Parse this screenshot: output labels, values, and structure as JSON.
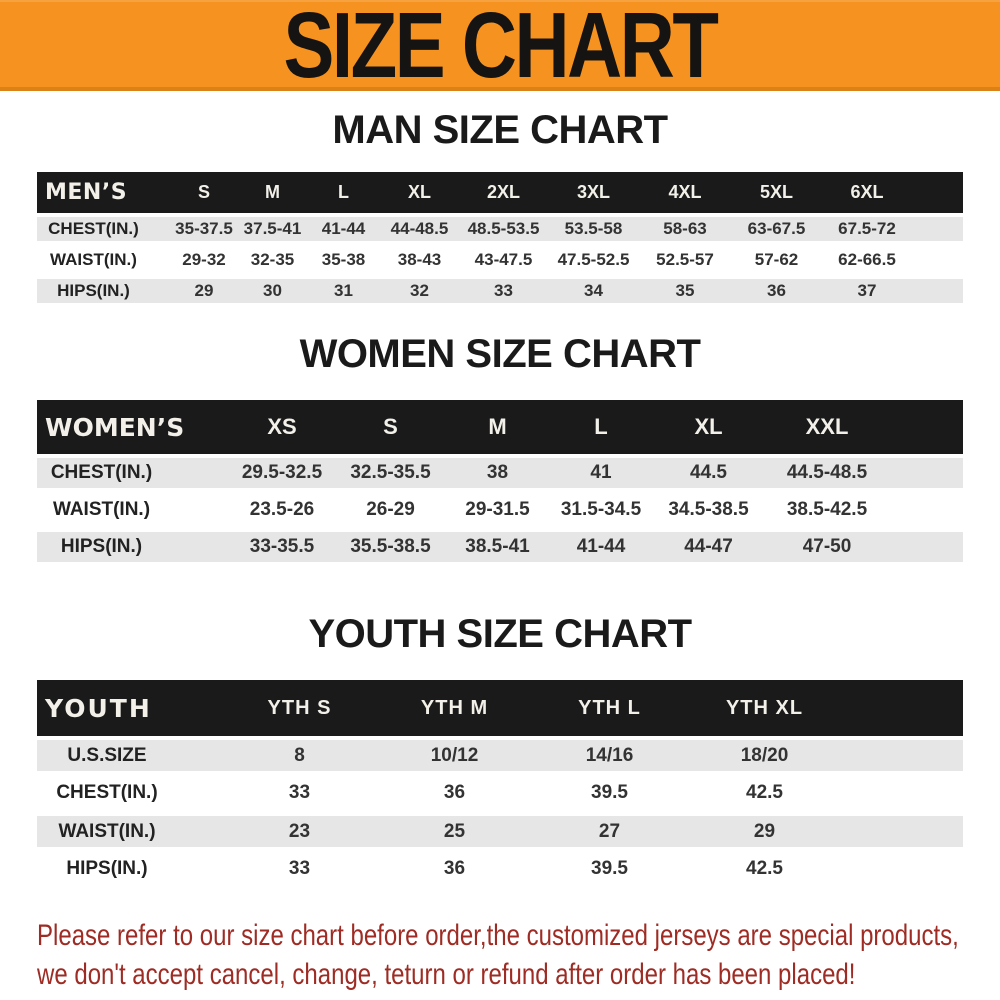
{
  "banner": {
    "title": "SIZE CHART"
  },
  "colors": {
    "banner_bg": "#f6921f",
    "table_header_bg": "#1a1a1a",
    "row_stripe": "#e6e6e6",
    "footer_text": "#9e2c24"
  },
  "chart_data": [
    {
      "type": "table",
      "title": "MAN SIZE CHART",
      "columns": [
        "MEN’S",
        "S",
        "M",
        "L",
        "XL",
        "2XL",
        "3XL",
        "4XL",
        "5XL",
        "6XL"
      ],
      "rows": [
        [
          "CHEST(IN.)",
          "35-37.5",
          "37.5-41",
          "41-44",
          "44-48.5",
          "48.5-53.5",
          "53.5-58",
          "58-63",
          "63-67.5",
          "67.5-72"
        ],
        [
          "WAIST(IN.)",
          "29-32",
          "32-35",
          "35-38",
          "38-43",
          "43-47.5",
          "47.5-52.5",
          "52.5-57",
          "57-62",
          "62-66.5"
        ],
        [
          "HIPS(IN.)",
          "29",
          "30",
          "31",
          "32",
          "33",
          "34",
          "35",
          "36",
          "37"
        ]
      ]
    },
    {
      "type": "table",
      "title": "WOMEN SIZE CHART",
      "columns": [
        "WOMEN’S",
        "XS",
        "S",
        "M",
        "L",
        "XL",
        "XXL"
      ],
      "rows": [
        [
          "CHEST(IN.)",
          "29.5-32.5",
          "32.5-35.5",
          "38",
          "41",
          "44.5",
          "44.5-48.5"
        ],
        [
          "WAIST(IN.)",
          "23.5-26",
          "26-29",
          "29-31.5",
          "31.5-34.5",
          "34.5-38.5",
          "38.5-42.5"
        ],
        [
          "HIPS(IN.)",
          "33-35.5",
          "35.5-38.5",
          "38.5-41",
          "41-44",
          "44-47",
          "47-50"
        ]
      ]
    },
    {
      "type": "table",
      "title": "YOUTH SIZE CHART",
      "columns": [
        "YOUTH",
        "YTH S",
        "YTH M",
        "YTH L",
        "YTH XL"
      ],
      "rows": [
        [
          "U.S.SIZE",
          "8",
          "10/12",
          "14/16",
          "18/20"
        ],
        [
          "CHEST(IN.)",
          "33",
          "36",
          "39.5",
          "42.5"
        ],
        [
          "WAIST(IN.)",
          "23",
          "25",
          "27",
          "29"
        ],
        [
          "HIPS(IN.)",
          "33",
          "36",
          "39.5",
          "42.5"
        ]
      ]
    }
  ],
  "footer": {
    "line1": "Please refer to our size chart before order,the customized jerseys are special products,",
    "line2": "we don't accept cancel, change, teturn or refund after order has been placed!"
  }
}
